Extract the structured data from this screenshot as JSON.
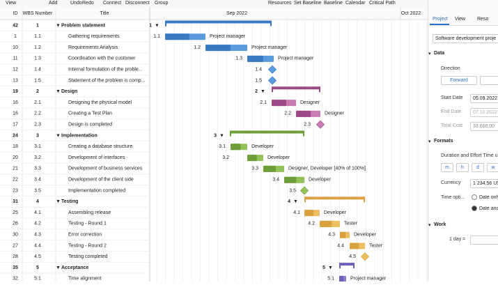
{
  "toolbar": [
    "View",
    "Add",
    "Undo",
    "Redo",
    "Connect",
    "Disconnect",
    "Group",
    "Resources",
    "Set Baseline",
    "Baseline",
    "Calendar",
    "Critical Path"
  ],
  "columns": {
    "id": "ID",
    "wbs": "WBS Number",
    "title": "Title"
  },
  "months": [
    "Sep 2022",
    "Oct 2022"
  ],
  "rows": [
    {
      "id": 42,
      "wbs": "1",
      "title": "Problem statement"
    },
    {
      "id": 1,
      "wbs": "1.1",
      "title": "Gathering requirements",
      "resource": "Project manager"
    },
    {
      "id": 10,
      "wbs": "1.2",
      "title": "Requirements Analysis",
      "resource": "Project manager"
    },
    {
      "id": 11,
      "wbs": "1.3",
      "title": "Coordination with the customer",
      "resource": "Project manager"
    },
    {
      "id": 12,
      "wbs": "1.4",
      "title": "Internal formulation of the proble..."
    },
    {
      "id": 13,
      "wbs": "1.5",
      "title": "Statement of the problem is comp..."
    },
    {
      "id": 19,
      "wbs": "2",
      "title": "Design"
    },
    {
      "id": 16,
      "wbs": "2.1",
      "title": "Designing the physical model",
      "resource": "Designer"
    },
    {
      "id": 16,
      "wbs": "2.2",
      "title": "Creating a Test Plan",
      "resource": "Designer"
    },
    {
      "id": 17,
      "wbs": "2.3",
      "title": "Design is completed"
    },
    {
      "id": 24,
      "wbs": "3",
      "title": "Implementation"
    },
    {
      "id": 18,
      "wbs": "3.1",
      "title": "Creating a database structure",
      "resource": "Developer"
    },
    {
      "id": 20,
      "wbs": "3.2",
      "title": "Development of interfaces",
      "resource": "Developer"
    },
    {
      "id": 21,
      "wbs": "3.3",
      "title": "Development of business services",
      "resource": "Designer, Developer [40% of 100%]"
    },
    {
      "id": 22,
      "wbs": "3.4",
      "title": "Development of the client side",
      "resource": "Developer"
    },
    {
      "id": 23,
      "wbs": "3.5",
      "title": "Implementation completed"
    },
    {
      "id": 31,
      "wbs": "4",
      "title": "Testing"
    },
    {
      "id": 25,
      "wbs": "4.1",
      "title": "Assembling release",
      "resource": "Developer"
    },
    {
      "id": 26,
      "wbs": "4.2",
      "title": "Testing - Round 1",
      "resource": "Tester"
    },
    {
      "id": 30,
      "wbs": "4.3",
      "title": "Error correction",
      "resource": "Developer"
    },
    {
      "id": 27,
      "wbs": "4.4",
      "title": "Testing - Round 2",
      "resource": "Tester"
    },
    {
      "id": 28,
      "wbs": "4.5",
      "title": "Testing completed"
    },
    {
      "id": 35,
      "wbs": "5",
      "title": "Acceptance"
    },
    {
      "id": 32,
      "wbs": "5.1",
      "title": "Time alignment",
      "resource": "Project manager"
    }
  ],
  "panel": {
    "tabs": [
      "Project",
      "View",
      "Reso"
    ],
    "project_name": "Software development proje",
    "data": "Data",
    "direction": "Direction",
    "forward": "Forward",
    "start_label": "Start Date",
    "start_value": "05.09.2022",
    "end_label": "End Date",
    "end_value": "07.10.2022",
    "cost_label": "Total Cost",
    "cost_value": "33 666.00",
    "formats": "Formats",
    "duration": "Duration and Effort Time u",
    "units": [
      "m",
      "h",
      "d",
      "w"
    ],
    "currency_label": "Currency",
    "currency_value": "1 234.56 US",
    "time_label": "Time opti...",
    "time_options": [
      "Date only",
      "Date and"
    ],
    "work": "Work",
    "day": "1 day ="
  }
}
